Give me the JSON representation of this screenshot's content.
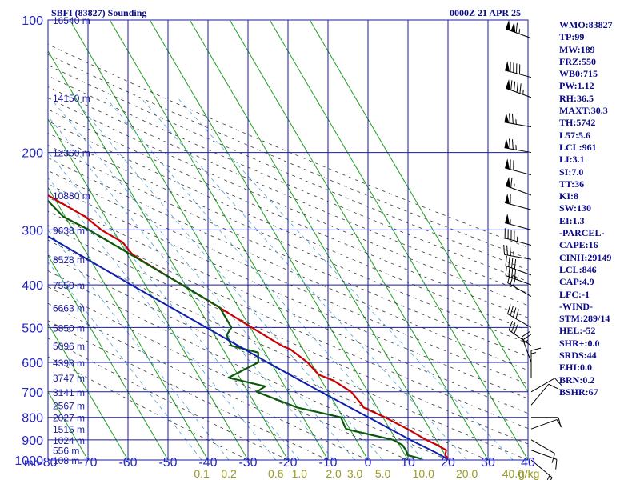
{
  "header": {
    "station_title": "SBFI (83827) Sounding",
    "time_title": "0000Z 21 APR 25"
  },
  "indices": [
    "WMO:83827",
    "TP:99",
    "MW:189",
    "FRZ:550",
    "WB0:715",
    "PW:1.12",
    "RH:36.5",
    "MAXT:30.3",
    "TH:5742",
    "L57:5.6",
    "LCL:961",
    "LI:3.1",
    "SI:7.0",
    "TT:36",
    "KI:8",
    "SW:130",
    "EI:1.3",
    "-PARCEL-",
    "CAPE:16",
    "CINH:29149",
    "LCL:846",
    "CAP:4.9",
    "LFC:-1",
    "-WIND-",
    "STM:289/14",
    "HEL:-52",
    "SHR+:0.0",
    "SRDS:44",
    "EHI:0.0",
    "BRN:0.2",
    "BSHR:67"
  ],
  "colors": {
    "grid": "#1a1aa0",
    "isotherm": "#1f9e1f",
    "temperature": "#cc0000",
    "dewpoint": "#0b5a0b",
    "parcel": "#0d1fb0",
    "dry_adiabat": "#3a3a3a",
    "mixing_ratio": "#4f9fd8",
    "axis_text": "#2525c8",
    "mixing_text": "#9a9a20",
    "wind": "#000000"
  },
  "chart_data": {
    "type": "line",
    "subtype": "skew-T log-P sounding",
    "x_unit": "°C",
    "y_unit": "hPa",
    "y_scale": "log",
    "xlim": [
      -80,
      40
    ],
    "ylim": [
      1000,
      100
    ],
    "pressure_levels": [
      100,
      200,
      300,
      400,
      500,
      600,
      700,
      800,
      900,
      1000
    ],
    "height_labels": [
      {
        "p": 100,
        "label": "16540 m"
      },
      {
        "p": 150,
        "label": "14150 m"
      },
      {
        "p": 200,
        "label": "12360 m"
      },
      {
        "p": 250,
        "label": "10880 m"
      },
      {
        "p": 300,
        "label": "9638 m"
      },
      {
        "p": 350,
        "label": "8528 m"
      },
      {
        "p": 400,
        "label": "7550 m"
      },
      {
        "p": 450,
        "label": "6663 m"
      },
      {
        "p": 500,
        "label": "5850 m"
      },
      {
        "p": 550,
        "label": "5096 m"
      },
      {
        "p": 600,
        "label": "4398 m"
      },
      {
        "p": 650,
        "label": "3747 m"
      },
      {
        "p": 700,
        "label": "3141 m"
      },
      {
        "p": 750,
        "label": "2567 m"
      },
      {
        "p": 800,
        "label": "2027 m"
      },
      {
        "p": 850,
        "label": "1515 m"
      },
      {
        "p": 900,
        "label": "1024 m"
      },
      {
        "p": 950,
        "label": "556 m"
      },
      {
        "p": 1000,
        "label": "108 m"
      }
    ],
    "y_axis_unit_label": "mb",
    "x_ticks": [
      -80,
      -70,
      -60,
      -50,
      -40,
      -30,
      -20,
      -10,
      0,
      10,
      20,
      30,
      40
    ],
    "mixing_ratio_labels": [
      {
        "label": "0.1",
        "w": 0.1
      },
      {
        "label": "0.2",
        "w": 0.2
      },
      {
        "label": "0.6",
        "w": 0.6
      },
      {
        "label": "1.0",
        "w": 1.0
      },
      {
        "label": "2.0",
        "w": 2.0
      },
      {
        "label": "3.0",
        "w": 3.0
      },
      {
        "label": "5.0",
        "w": 5.0
      },
      {
        "label": "10.0",
        "w": 10.0
      },
      {
        "label": "20.0",
        "w": 20.0
      },
      {
        "label": "40.0",
        "w": 40.0
      }
    ],
    "mixing_ratio_unit": "g/kg",
    "series": [
      {
        "key": "temperature",
        "points": [
          [
            994,
            20.2
          ],
          [
            975,
            20.0
          ],
          [
            950,
            21.0
          ],
          [
            925,
            19.5
          ],
          [
            900,
            17.5
          ],
          [
            850,
            14.4
          ],
          [
            800,
            10.5
          ],
          [
            760,
            6.6
          ],
          [
            750,
            6.6
          ],
          [
            700,
            5.8
          ],
          [
            660,
            3.0
          ],
          [
            640,
            0.2
          ],
          [
            600,
            -0.8
          ],
          [
            560,
            -3.2
          ],
          [
            550,
            -4.8
          ],
          [
            500,
            -9.6
          ],
          [
            450,
            -14.8
          ],
          [
            400,
            -20.8
          ],
          [
            350,
            -27.6
          ],
          [
            340,
            -28.8
          ],
          [
            320,
            -29.4
          ],
          [
            300,
            -32.9
          ],
          [
            280,
            -35.0
          ],
          [
            250,
            -41.2
          ],
          [
            200,
            -50.5
          ],
          [
            150,
            -62.1
          ],
          [
            130,
            -67.0
          ],
          [
            100,
            -77.6
          ]
        ]
      },
      {
        "key": "dewpoint",
        "points": [
          [
            994,
            13.5
          ],
          [
            975,
            10.6
          ],
          [
            950,
            10.9
          ],
          [
            925,
            10.8
          ],
          [
            900,
            9.2
          ],
          [
            860,
            1.0
          ],
          [
            850,
            -0.9
          ],
          [
            840,
            -0.9
          ],
          [
            800,
            -0.5
          ],
          [
            760,
            -10.0
          ],
          [
            700,
            -17.8
          ],
          [
            680,
            -14.9
          ],
          [
            650,
            -22.8
          ],
          [
            600,
            -13.1
          ],
          [
            570,
            -11.7
          ],
          [
            550,
            -17.4
          ],
          [
            520,
            -17.0
          ],
          [
            500,
            -14.7
          ],
          [
            450,
            -14.7
          ],
          [
            400,
            -20.8
          ],
          [
            350,
            -27.8
          ],
          [
            300,
            -36.0
          ],
          [
            280,
            -40.5
          ],
          [
            250,
            -42.5
          ],
          [
            240,
            -51.0
          ],
          [
            210,
            -51.4
          ],
          [
            200,
            -56.6
          ],
          [
            150,
            -66.8
          ],
          [
            100,
            -79.0
          ]
        ]
      },
      {
        "key": "parcel",
        "points": [
          [
            994,
            20.0
          ],
          [
            961,
            18.0
          ],
          [
            900,
            13.5
          ],
          [
            850,
            10.1
          ],
          [
            800,
            6.4
          ],
          [
            700,
            -1.8
          ],
          [
            600,
            -10.8
          ],
          [
            500,
            -21.0
          ],
          [
            400,
            -33.5
          ],
          [
            300,
            -49.0
          ],
          [
            250,
            -58.0
          ],
          [
            200,
            -68.0
          ],
          [
            150,
            -79.0
          ]
        ]
      }
    ],
    "wind_barbs": [
      {
        "p": 110,
        "dir": 290,
        "spd": 115
      },
      {
        "p": 135,
        "dir": 285,
        "spd": 90
      },
      {
        "p": 150,
        "dir": 290,
        "spd": 95
      },
      {
        "p": 175,
        "dir": 280,
        "spd": 75
      },
      {
        "p": 200,
        "dir": 280,
        "spd": 75
      },
      {
        "p": 225,
        "dir": 285,
        "spd": 70
      },
      {
        "p": 250,
        "dir": 290,
        "spd": 65
      },
      {
        "p": 270,
        "dir": 285,
        "spd": 60
      },
      {
        "p": 300,
        "dir": 285,
        "spd": 55
      },
      {
        "p": 325,
        "dir": 285,
        "spd": 45
      },
      {
        "p": 350,
        "dir": 280,
        "spd": 35
      },
      {
        "p": 380,
        "dir": 290,
        "spd": 40
      },
      {
        "p": 400,
        "dir": 290,
        "spd": 45
      },
      {
        "p": 425,
        "dir": 300,
        "spd": 30
      },
      {
        "p": 500,
        "dir": 300,
        "spd": 40
      },
      {
        "p": 550,
        "dir": 305,
        "spd": 30
      },
      {
        "p": 600,
        "dir": 340,
        "spd": 25
      },
      {
        "p": 650,
        "dir": 360,
        "spd": 15
      },
      {
        "p": 700,
        "dir": 60,
        "spd": 10
      },
      {
        "p": 750,
        "dir": 40,
        "spd": 10
      },
      {
        "p": 800,
        "dir": 90,
        "spd": 10
      },
      {
        "p": 850,
        "dir": 70,
        "spd": 10
      },
      {
        "p": 900,
        "dir": 120,
        "spd": 10
      },
      {
        "p": 950,
        "dir": 110,
        "spd": 10
      },
      {
        "p": 1000,
        "dir": 130,
        "spd": 15
      }
    ],
    "grid": true
  }
}
